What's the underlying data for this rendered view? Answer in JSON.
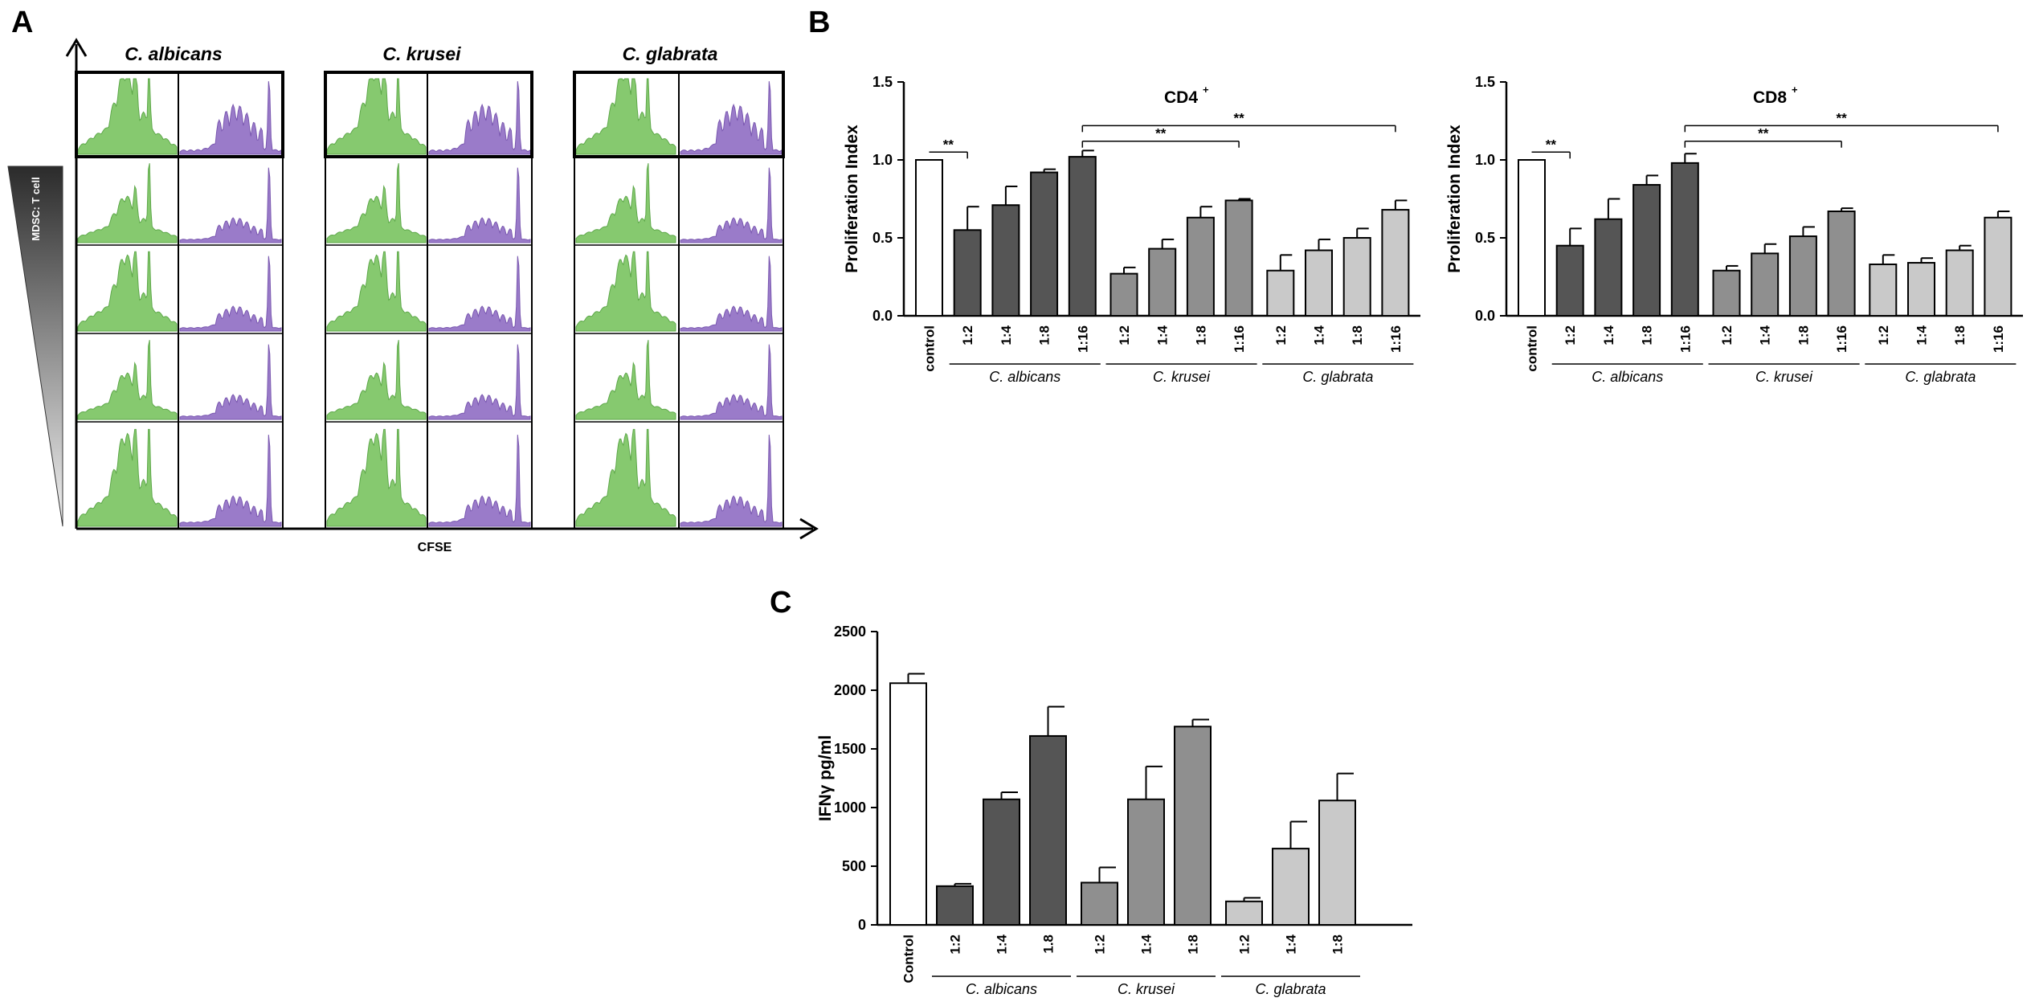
{
  "panel_labels": {
    "a": "A",
    "b": "B",
    "c": "C"
  },
  "panelA": {
    "species": [
      "C. albicans",
      "C. krusei",
      "C. glabrata"
    ],
    "x_label": "CFSE",
    "y_label": "MDSC: T cell",
    "rows": 5,
    "colors": {
      "green": "#86c96f",
      "purple": "#9a7bc9"
    }
  },
  "colors": {
    "control": "#ffffff",
    "albicans": "#555555",
    "krusei": "#8f8f8f",
    "glabrata": "#c9c9c9",
    "axis": "#000000"
  },
  "chart_data": [
    {
      "id": "cd4",
      "type": "bar",
      "title": "CD4",
      "title_sup": "+",
      "ylabel": "Proliferation Index",
      "ylim": [
        0,
        1.5
      ],
      "yticks": [
        "0.0",
        "0.5",
        "1.0",
        "1.5"
      ],
      "ytick_values": [
        0,
        0.5,
        1.0,
        1.5
      ],
      "categories": [
        "control",
        "1:2",
        "1:4",
        "1:8",
        "1:16",
        "1:2",
        "1:4",
        "1:8",
        "1:16",
        "1:2",
        "1:4",
        "1:8",
        "1:16"
      ],
      "groups": [
        "control",
        "albicans",
        "albicans",
        "albicans",
        "albicans",
        "krusei",
        "krusei",
        "krusei",
        "krusei",
        "glabrata",
        "glabrata",
        "glabrata",
        "glabrata"
      ],
      "values": [
        1.0,
        0.55,
        0.71,
        0.92,
        1.02,
        0.27,
        0.43,
        0.63,
        0.74,
        0.29,
        0.42,
        0.5,
        0.68
      ],
      "errors": [
        0.0,
        0.15,
        0.12,
        0.02,
        0.04,
        0.04,
        0.06,
        0.07,
        0.01,
        0.1,
        0.07,
        0.06,
        0.06
      ],
      "group_labels": [
        "C. albicans",
        "C. krusei",
        "C. glabrata"
      ],
      "significance": [
        {
          "from": 0,
          "to": 1,
          "label": "**",
          "level": 0.05
        },
        {
          "from": 4,
          "to": 8,
          "label": "**",
          "level": 1.12
        },
        {
          "from": 4,
          "to": 12,
          "label": "**",
          "level": 1.22
        }
      ]
    },
    {
      "id": "cd8",
      "type": "bar",
      "title": "CD8",
      "title_sup": "+",
      "ylabel": "Proliferation Index",
      "ylim": [
        0,
        1.5
      ],
      "yticks": [
        "0.0",
        "0.5",
        "1.0",
        "1.5"
      ],
      "ytick_values": [
        0,
        0.5,
        1.0,
        1.5
      ],
      "categories": [
        "control",
        "1:2",
        "1:4",
        "1:8",
        "1:16",
        "1:2",
        "1:4",
        "1:8",
        "1:16",
        "1:2",
        "1:4",
        "1:8",
        "1:16"
      ],
      "groups": [
        "control",
        "albicans",
        "albicans",
        "albicans",
        "albicans",
        "krusei",
        "krusei",
        "krusei",
        "krusei",
        "glabrata",
        "glabrata",
        "glabrata",
        "glabrata"
      ],
      "values": [
        1.0,
        0.45,
        0.62,
        0.84,
        0.98,
        0.29,
        0.4,
        0.51,
        0.67,
        0.33,
        0.34,
        0.42,
        0.63
      ],
      "errors": [
        0.0,
        0.11,
        0.13,
        0.06,
        0.06,
        0.03,
        0.06,
        0.06,
        0.02,
        0.06,
        0.03,
        0.03,
        0.04
      ],
      "group_labels": [
        "C. albicans",
        "C. krusei",
        "C. glabrata"
      ],
      "significance": [
        {
          "from": 0,
          "to": 1,
          "label": "**",
          "level": 0.05
        },
        {
          "from": 4,
          "to": 8,
          "label": "**",
          "level": 1.12
        },
        {
          "from": 4,
          "to": 12,
          "label": "**",
          "level": 1.22
        }
      ]
    },
    {
      "id": "ifn",
      "type": "bar",
      "title": "",
      "title_sup": "",
      "ylabel": "IFNγ pg/ml",
      "ylim": [
        0,
        2500
      ],
      "yticks": [
        "0",
        "500",
        "1000",
        "1500",
        "2000",
        "2500"
      ],
      "ytick_values": [
        0,
        500,
        1000,
        1500,
        2000,
        2500
      ],
      "categories": [
        "Control",
        "1:2",
        "1:4",
        "1.8",
        "1:2",
        "1:4",
        "1:8",
        "1:2",
        "1:4",
        "1:8"
      ],
      "groups": [
        "control",
        "albicans",
        "albicans",
        "albicans",
        "krusei",
        "krusei",
        "krusei",
        "glabrata",
        "glabrata",
        "glabrata"
      ],
      "values": [
        2060,
        330,
        1070,
        1610,
        360,
        1070,
        1690,
        200,
        650,
        1060
      ],
      "errors": [
        80,
        20,
        60,
        250,
        130,
        280,
        60,
        30,
        230,
        230
      ],
      "group_labels": [
        "C. albicans",
        "C. krusei",
        "C. glabrata"
      ],
      "significance": []
    }
  ]
}
